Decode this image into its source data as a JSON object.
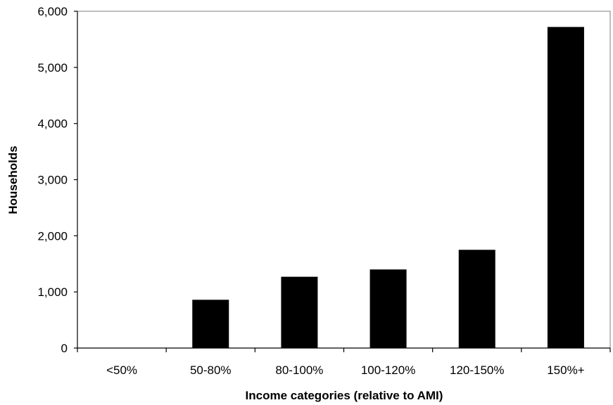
{
  "chart_data": {
    "type": "bar",
    "title": "",
    "xlabel": "Income categories (relative to AMI)",
    "ylabel": "Households",
    "categories": [
      "<50%",
      "50-80%",
      "80-100%",
      "100-120%",
      "120-150%",
      "150%+"
    ],
    "values": [
      0,
      860,
      1270,
      1400,
      1750,
      5720
    ],
    "ylim": [
      0,
      6000
    ],
    "yticks": [
      0,
      1000,
      2000,
      3000,
      4000,
      5000,
      6000
    ],
    "ytick_labels": [
      "0",
      "1,000",
      "2,000",
      "3,000",
      "4,000",
      "5,000",
      "6,000"
    ],
    "bar_color": "#000000",
    "grid": false,
    "legend": "none"
  }
}
